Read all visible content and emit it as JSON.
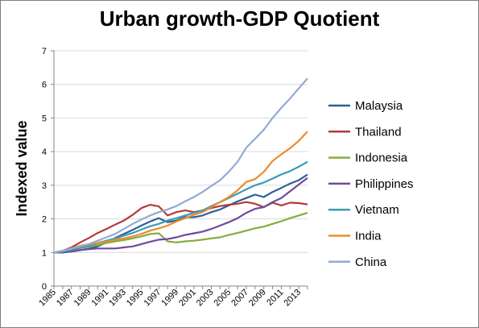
{
  "chart_data": {
    "type": "line",
    "title": "Urban growth-GDP Quotient",
    "xlabel": "",
    "ylabel": "Indexed value",
    "x": [
      1985,
      1986,
      1987,
      1988,
      1989,
      1990,
      1991,
      1992,
      1993,
      1994,
      1995,
      1996,
      1997,
      1998,
      1999,
      2000,
      2001,
      2002,
      2003,
      2004,
      2005,
      2006,
      2007,
      2008,
      2009,
      2010,
      2011,
      2012,
      2013,
      2014
    ],
    "x_tick_labels": [
      "1985",
      "1987",
      "1989",
      "1991",
      "1993",
      "1995",
      "1997",
      "1999",
      "2001",
      "2003",
      "2005",
      "2007",
      "2009",
      "2011",
      "2013"
    ],
    "ylim": [
      0,
      7
    ],
    "y_ticks": [
      "0",
      "1",
      "2",
      "3",
      "4",
      "5",
      "6",
      "7"
    ],
    "grid": "horizontal",
    "legend_position": "right",
    "series": [
      {
        "name": "Malaysia",
        "color": "#2e5f9b",
        "values": [
          1.0,
          1.0,
          1.03,
          1.07,
          1.12,
          1.18,
          1.3,
          1.43,
          1.55,
          1.67,
          1.8,
          1.92,
          2.02,
          1.9,
          1.95,
          2.05,
          2.05,
          2.1,
          2.2,
          2.28,
          2.4,
          2.52,
          2.62,
          2.72,
          2.65,
          2.8,
          2.92,
          3.05,
          3.15,
          3.32
        ]
      },
      {
        "name": "Thailand",
        "color": "#b23b3b",
        "values": [
          1.0,
          1.05,
          1.15,
          1.3,
          1.43,
          1.58,
          1.7,
          1.83,
          1.95,
          2.12,
          2.32,
          2.42,
          2.37,
          2.1,
          2.2,
          2.25,
          2.2,
          2.25,
          2.32,
          2.38,
          2.42,
          2.45,
          2.5,
          2.45,
          2.35,
          2.48,
          2.4,
          2.48,
          2.47,
          2.43
        ]
      },
      {
        "name": "Indonesia",
        "color": "#86ac3e",
        "values": [
          1.0,
          1.02,
          1.07,
          1.13,
          1.18,
          1.22,
          1.28,
          1.33,
          1.37,
          1.42,
          1.48,
          1.55,
          1.57,
          1.33,
          1.3,
          1.33,
          1.35,
          1.38,
          1.42,
          1.45,
          1.52,
          1.58,
          1.65,
          1.72,
          1.77,
          1.85,
          1.93,
          2.02,
          2.1,
          2.18
        ]
      },
      {
        "name": "Philippines",
        "color": "#6e4b9e",
        "values": [
          1.0,
          1.0,
          1.03,
          1.07,
          1.1,
          1.12,
          1.12,
          1.12,
          1.15,
          1.18,
          1.25,
          1.32,
          1.38,
          1.4,
          1.45,
          1.52,
          1.57,
          1.62,
          1.7,
          1.8,
          1.9,
          2.02,
          2.18,
          2.3,
          2.35,
          2.5,
          2.62,
          2.82,
          3.02,
          3.22
        ]
      },
      {
        "name": "Vietnam",
        "color": "#3a9cb5",
        "values": [
          1.0,
          1.03,
          1.08,
          1.15,
          1.2,
          1.28,
          1.35,
          1.42,
          1.5,
          1.58,
          1.68,
          1.78,
          1.85,
          1.95,
          2.02,
          2.1,
          2.18,
          2.25,
          2.38,
          2.5,
          2.62,
          2.75,
          2.88,
          3.0,
          3.08,
          3.2,
          3.32,
          3.42,
          3.55,
          3.7
        ]
      },
      {
        "name": "India",
        "color": "#ed8b2e",
        "values": [
          1.0,
          1.05,
          1.12,
          1.2,
          1.25,
          1.28,
          1.32,
          1.38,
          1.42,
          1.48,
          1.55,
          1.65,
          1.72,
          1.8,
          1.92,
          2.02,
          2.12,
          2.2,
          2.35,
          2.5,
          2.65,
          2.85,
          3.1,
          3.18,
          3.4,
          3.72,
          3.92,
          4.1,
          4.32,
          4.6
        ]
      },
      {
        "name": "China",
        "color": "#93aad3",
        "values": [
          1.0,
          1.05,
          1.12,
          1.18,
          1.25,
          1.35,
          1.45,
          1.55,
          1.7,
          1.85,
          1.98,
          2.1,
          2.2,
          2.28,
          2.38,
          2.52,
          2.65,
          2.8,
          2.98,
          3.15,
          3.4,
          3.7,
          4.12,
          4.38,
          4.65,
          5.0,
          5.3,
          5.58,
          5.88,
          6.18
        ]
      }
    ]
  }
}
